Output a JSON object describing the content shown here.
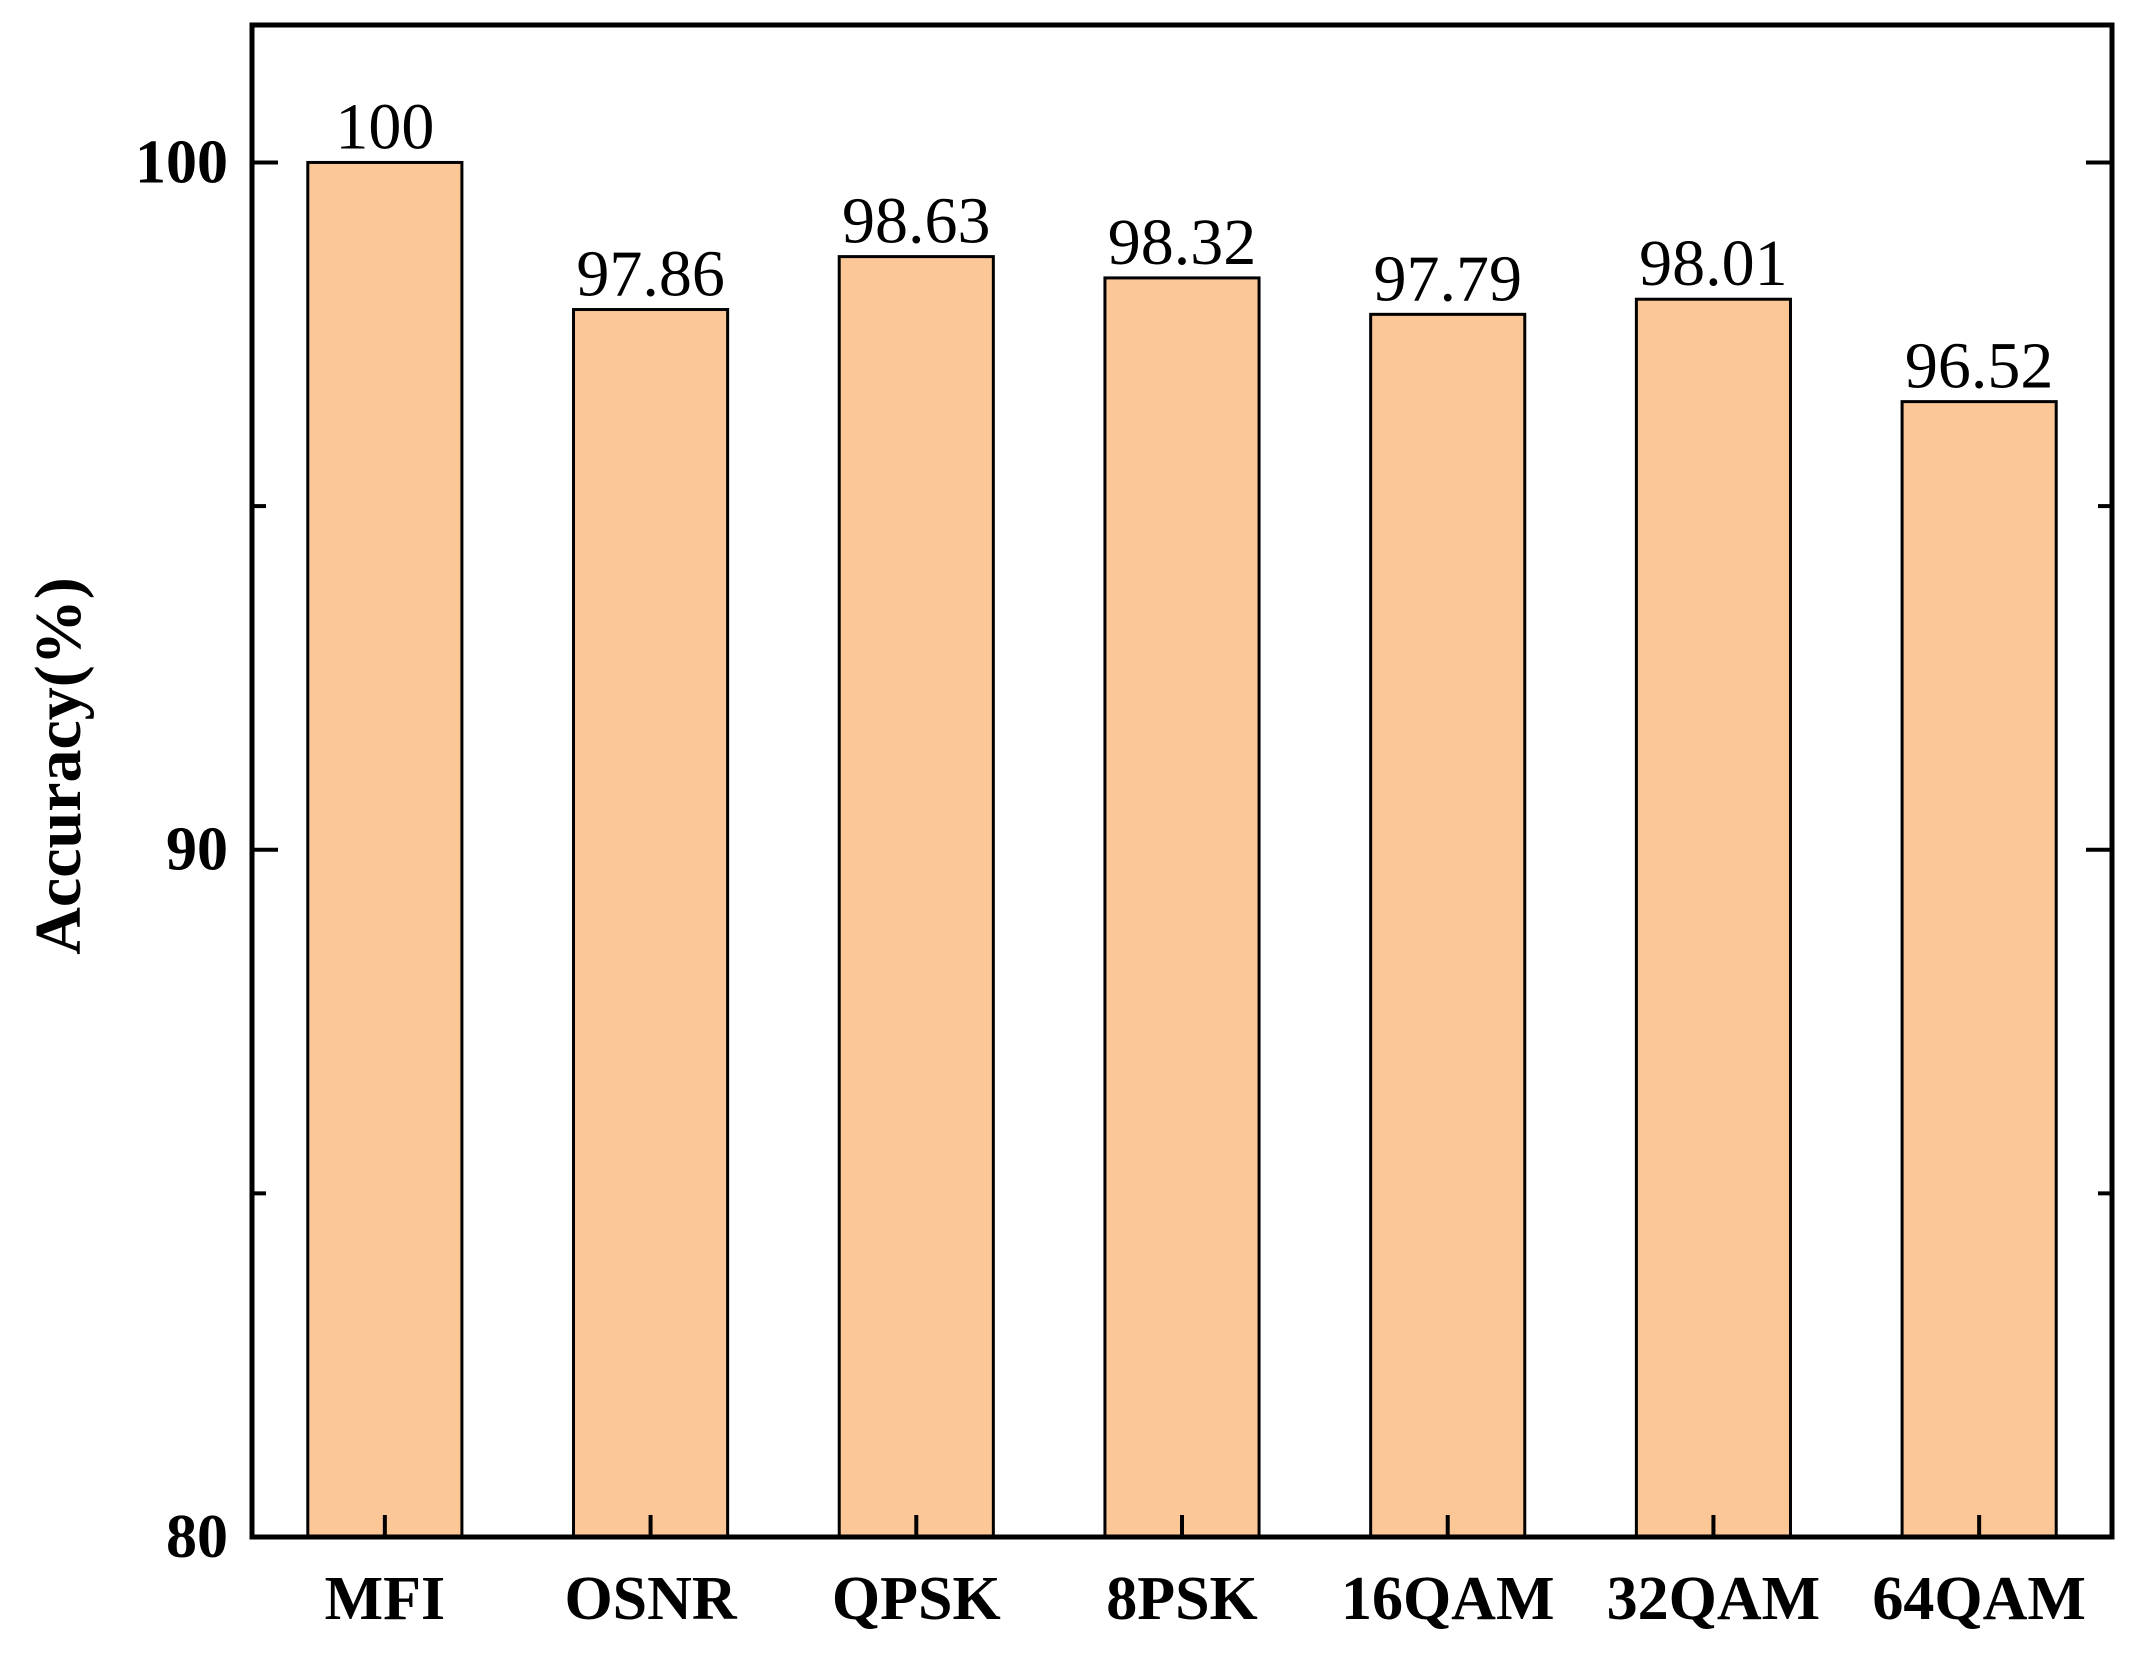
{
  "chart_data": {
    "type": "bar",
    "categories": [
      "MFI",
      "OSNR",
      "QPSK",
      "8PSK",
      "16QAM",
      "32QAM",
      "64QAM"
    ],
    "values": [
      100,
      97.86,
      98.63,
      98.32,
      97.79,
      98.01,
      96.52
    ],
    "data_labels": [
      "100",
      "97.86",
      "98.63",
      "98.32",
      "97.79",
      "98.01",
      "96.52"
    ],
    "ylabel": "Accuracy(%)",
    "ylim": [
      80,
      102
    ],
    "y_ticks": [
      80,
      90,
      100
    ],
    "y_tick_labels": [
      "80",
      "90",
      "100"
    ],
    "grid": false,
    "bar_color": "#FBC797",
    "bar_edge_color": "#000000"
  }
}
